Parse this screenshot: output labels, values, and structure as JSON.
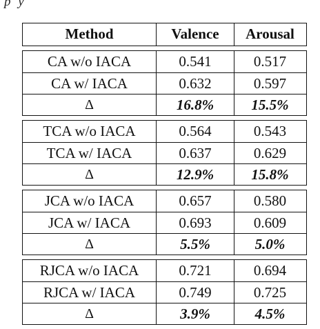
{
  "caption_fragment": [
    "p",
    "y"
  ],
  "table": {
    "headers": [
      "Method",
      "Valence",
      "Arousal"
    ],
    "groups": [
      {
        "rows": [
          {
            "method": "CA w/o IACA",
            "valence": "0.541",
            "arousal": "0.517"
          },
          {
            "method": "CA w/ IACA",
            "valence": "0.632",
            "arousal": "0.597"
          },
          {
            "method": "Δ",
            "valence": "16.8%",
            "arousal": "15.5%"
          }
        ]
      },
      {
        "rows": [
          {
            "method": "TCA w/o IACA",
            "valence": "0.564",
            "arousal": "0.543"
          },
          {
            "method": "TCA w/ IACA",
            "valence": "0.637",
            "arousal": "0.629"
          },
          {
            "method": "Δ",
            "valence": "12.9%",
            "arousal": "15.8%"
          }
        ]
      },
      {
        "rows": [
          {
            "method": "JCA w/o IACA",
            "valence": "0.657",
            "arousal": "0.580"
          },
          {
            "method": "JCA w/ IACA",
            "valence": "0.693",
            "arousal": "0.609"
          },
          {
            "method": "Δ",
            "valence": "5.5%",
            "arousal": "5.0%"
          }
        ]
      },
      {
        "rows": [
          {
            "method": "RJCA w/o IACA",
            "valence": "0.721",
            "arousal": "0.694"
          },
          {
            "method": "RJCA w/ IACA",
            "valence": "0.749",
            "arousal": "0.725"
          },
          {
            "method": "Δ",
            "valence": "3.9%",
            "arousal": "4.5%"
          }
        ]
      }
    ]
  }
}
